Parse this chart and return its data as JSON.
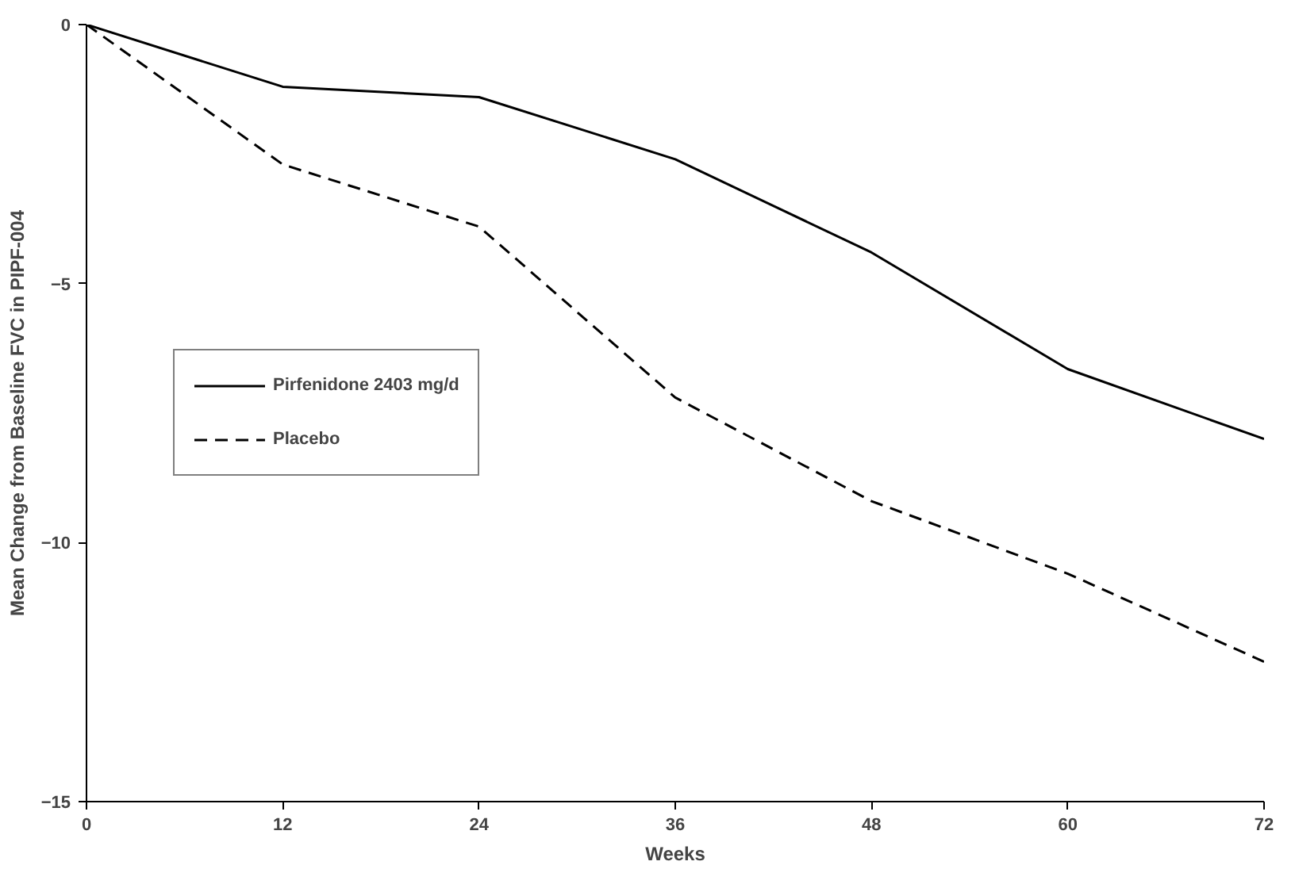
{
  "chart_data": {
    "type": "line",
    "xlabel": "Weeks",
    "ylabel": "Mean Change from Baseline FVC in PIPF-004",
    "x": [
      0,
      12,
      24,
      36,
      48,
      60,
      72
    ],
    "series": [
      {
        "name": "Pirfenidone 2403 mg/d",
        "color": "#000000",
        "line_style": "solid",
        "values": [
          0,
          -1.2,
          -1.4,
          -2.6,
          -4.4,
          -6.65,
          -8.0
        ]
      },
      {
        "name": "Placebo",
        "color": "#000000",
        "line_style": "dashed",
        "values": [
          0,
          -2.7,
          -3.9,
          -7.2,
          -9.2,
          -10.6,
          -12.3
        ]
      }
    ],
    "xlim": [
      0,
      72
    ],
    "ylim": [
      -15,
      0
    ],
    "xticks": [
      0,
      12,
      24,
      36,
      48,
      60,
      72
    ],
    "yticks": [
      -15,
      -10,
      -5,
      0
    ],
    "grid": false,
    "legend": "left",
    "marker": "none"
  }
}
